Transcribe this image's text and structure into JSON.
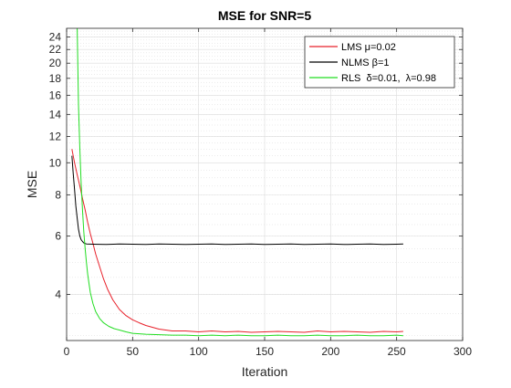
{
  "chart_data": {
    "type": "line",
    "title": "MSE for SNR=5",
    "xlabel": "Iteration",
    "ylabel": "MSE",
    "xlim": [
      0,
      300
    ],
    "ylim": [
      2.9,
      25.5
    ],
    "yscale": "log",
    "grid": true,
    "minor_grid": true,
    "legend_position": "top-right",
    "xticks": [
      0,
      50,
      100,
      150,
      200,
      250,
      300
    ],
    "yticks": [
      4,
      6,
      8,
      10,
      12,
      14,
      16,
      18,
      20,
      22,
      24
    ],
    "series": [
      {
        "name": "LMS μ=0.02",
        "color": "#e8202a",
        "x": [
          4,
          6,
          8,
          10,
          12,
          14,
          16,
          18,
          20,
          22,
          25,
          28,
          31,
          35,
          40,
          45,
          50,
          55,
          60,
          65,
          70,
          75,
          80,
          90,
          100,
          110,
          120,
          130,
          140,
          150,
          160,
          170,
          180,
          190,
          200,
          210,
          220,
          230,
          240,
          250,
          255
        ],
        "y": [
          11.0,
          10.0,
          9.2,
          8.5,
          7.8,
          7.2,
          6.6,
          6.1,
          5.7,
          5.3,
          4.85,
          4.45,
          4.15,
          3.85,
          3.6,
          3.45,
          3.35,
          3.28,
          3.22,
          3.18,
          3.14,
          3.12,
          3.1,
          3.1,
          3.08,
          3.1,
          3.08,
          3.09,
          3.07,
          3.08,
          3.09,
          3.08,
          3.07,
          3.1,
          3.08,
          3.09,
          3.08,
          3.07,
          3.09,
          3.08,
          3.09
        ]
      },
      {
        "name": "NLMS β=1",
        "color": "#000000",
        "x": [
          4,
          5,
          6,
          7,
          8,
          9,
          10,
          11,
          12,
          13,
          15,
          20,
          30,
          40,
          50,
          60,
          70,
          80,
          90,
          100,
          110,
          120,
          130,
          140,
          150,
          160,
          170,
          180,
          190,
          200,
          210,
          220,
          230,
          240,
          250,
          255
        ],
        "y": [
          10.5,
          9.3,
          8.3,
          7.4,
          6.8,
          6.3,
          6.0,
          5.85,
          5.78,
          5.72,
          5.68,
          5.67,
          5.66,
          5.68,
          5.67,
          5.66,
          5.68,
          5.67,
          5.66,
          5.67,
          5.68,
          5.66,
          5.67,
          5.68,
          5.66,
          5.67,
          5.68,
          5.66,
          5.67,
          5.68,
          5.66,
          5.67,
          5.68,
          5.66,
          5.67,
          5.68
        ]
      },
      {
        "name": "RLS  δ=0.01,  λ=0.98",
        "color": "#22dd22",
        "x": [
          8,
          9,
          10,
          11,
          12,
          13,
          14,
          15,
          16,
          17,
          18,
          20,
          22,
          25,
          28,
          32,
          36,
          40,
          45,
          50,
          55,
          60,
          70,
          80,
          90,
          100,
          110,
          120,
          130,
          140,
          150,
          160,
          170,
          180,
          190,
          200,
          210,
          220,
          230,
          240,
          250,
          255
        ],
        "y": [
          25.5,
          15.0,
          11.0,
          8.7,
          7.2,
          6.2,
          5.5,
          5.0,
          4.6,
          4.3,
          4.05,
          3.75,
          3.55,
          3.38,
          3.28,
          3.2,
          3.15,
          3.12,
          3.08,
          3.05,
          3.04,
          3.03,
          3.02,
          3.01,
          3.01,
          3.0,
          3.01,
          3.0,
          3.01,
          3.0,
          3.0,
          3.01,
          3.0,
          3.0,
          3.01,
          3.0,
          3.0,
          3.01,
          3.0,
          3.0,
          3.01,
          3.0
        ]
      }
    ]
  }
}
